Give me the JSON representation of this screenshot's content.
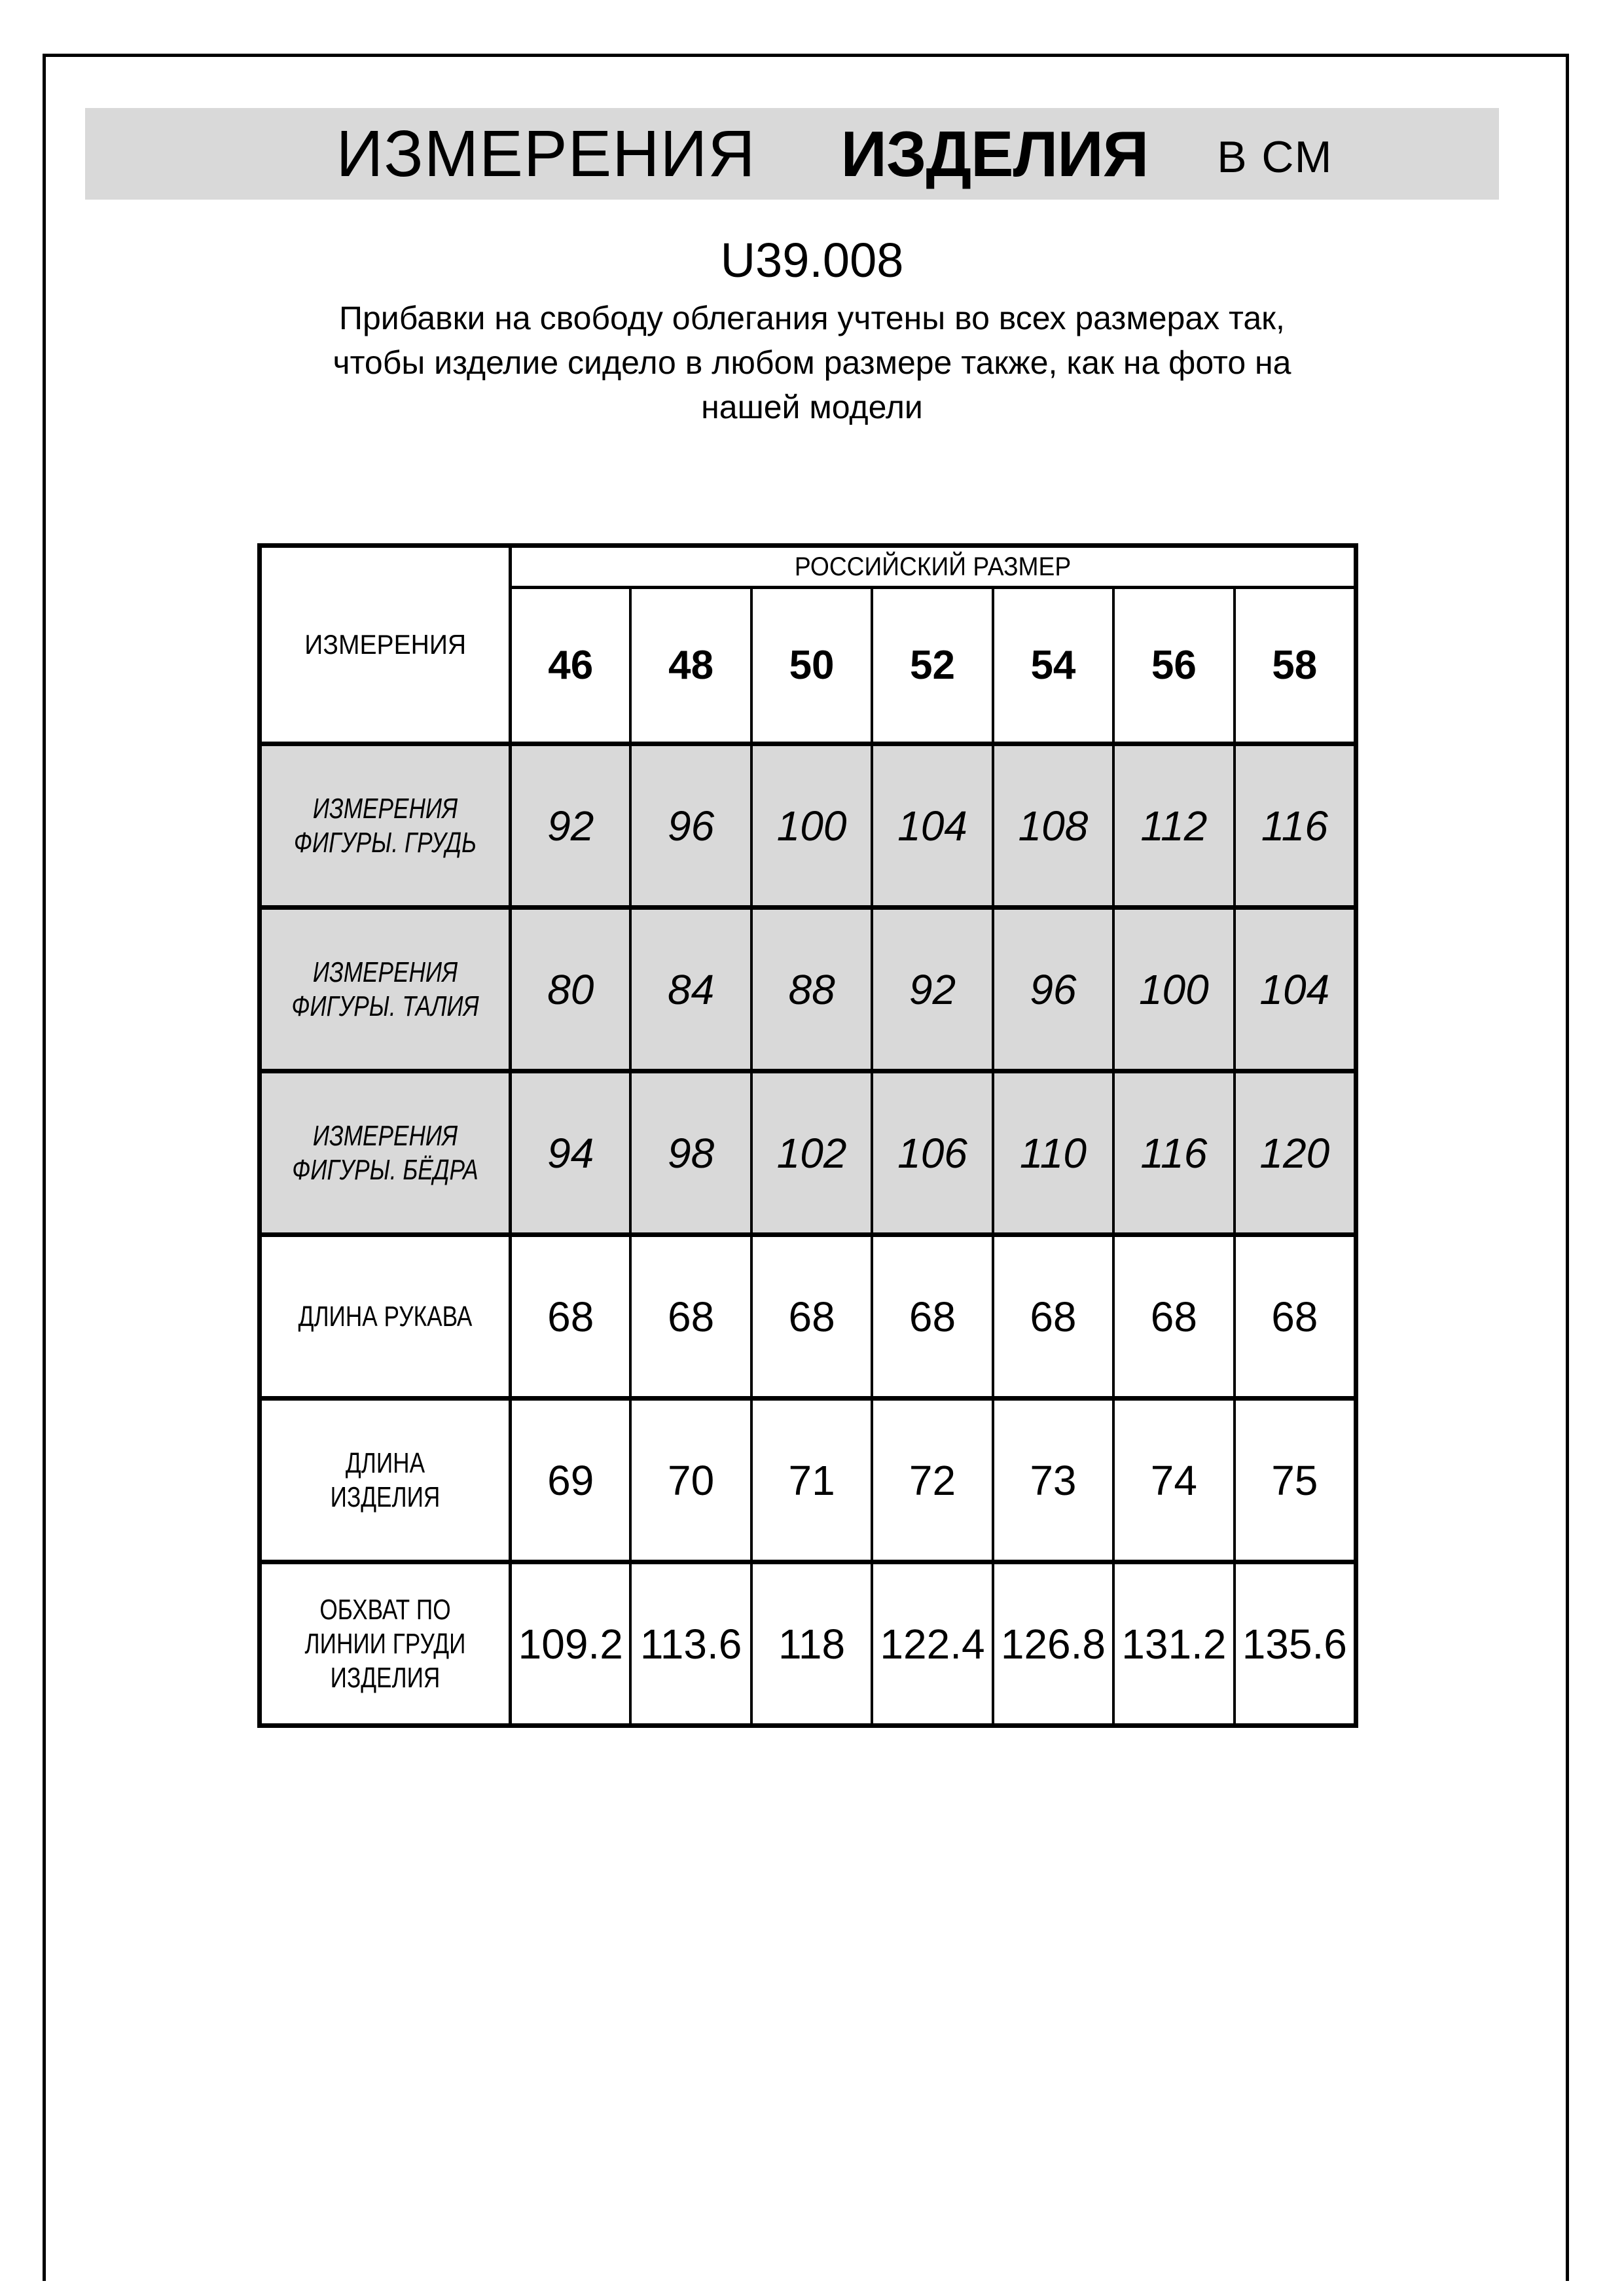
{
  "page": {
    "banner": {
      "word_measurements": "ИЗМЕРЕНИЯ",
      "word_product": "ИЗДЕЛИЯ",
      "units": "В СМ",
      "bg_color": "#d9d9d9"
    },
    "model_code": "U39.008",
    "note_lines": [
      "Прибавки на свободу облегания учтены во всех размерах так,",
      "чтобы изделие сидело в любом размере также, как на фото на",
      "нашей модели"
    ]
  },
  "size_table": {
    "corner_label": "ИЗМЕРЕНИЯ",
    "size_group_label": "РОССИЙСКИЙ РАЗМЕР",
    "sizes": [
      "46",
      "48",
      "50",
      "52",
      "54",
      "56",
      "58"
    ],
    "rows": [
      {
        "label": "ИЗМЕРЕНИЯ ФИГУРЫ. ГРУДЬ",
        "values": [
          "92",
          "96",
          "100",
          "104",
          "108",
          "112",
          "116"
        ]
      },
      {
        "label": "ИЗМЕРЕНИЯ ФИГУРЫ. ТАЛИЯ",
        "values": [
          "80",
          "84",
          "88",
          "92",
          "96",
          "100",
          "104"
        ]
      },
      {
        "label": "ИЗМЕРЕНИЯ ФИГУРЫ. БЁДРА",
        "values": [
          "94",
          "98",
          "102",
          "106",
          "110",
          "116",
          "120"
        ]
      },
      {
        "label": "ДЛИНА РУКАВА",
        "values": [
          "68",
          "68",
          "68",
          "68",
          "68",
          "68",
          "68"
        ]
      },
      {
        "label": "ДЛИНА ИЗДЕЛИЯ",
        "values": [
          "69",
          "70",
          "71",
          "72",
          "73",
          "74",
          "75"
        ]
      },
      {
        "label": "ОБХВАТ ПО ЛИНИИ ГРУДИ ИЗДЕЛИЯ",
        "values": [
          "109.2",
          "113.6",
          "118",
          "122.4",
          "126.8",
          "131.2",
          "135.6"
        ]
      }
    ],
    "colors": {
      "shaded_row_bg": "#d9d9d9",
      "border": "#000000",
      "text": "#000000"
    }
  }
}
